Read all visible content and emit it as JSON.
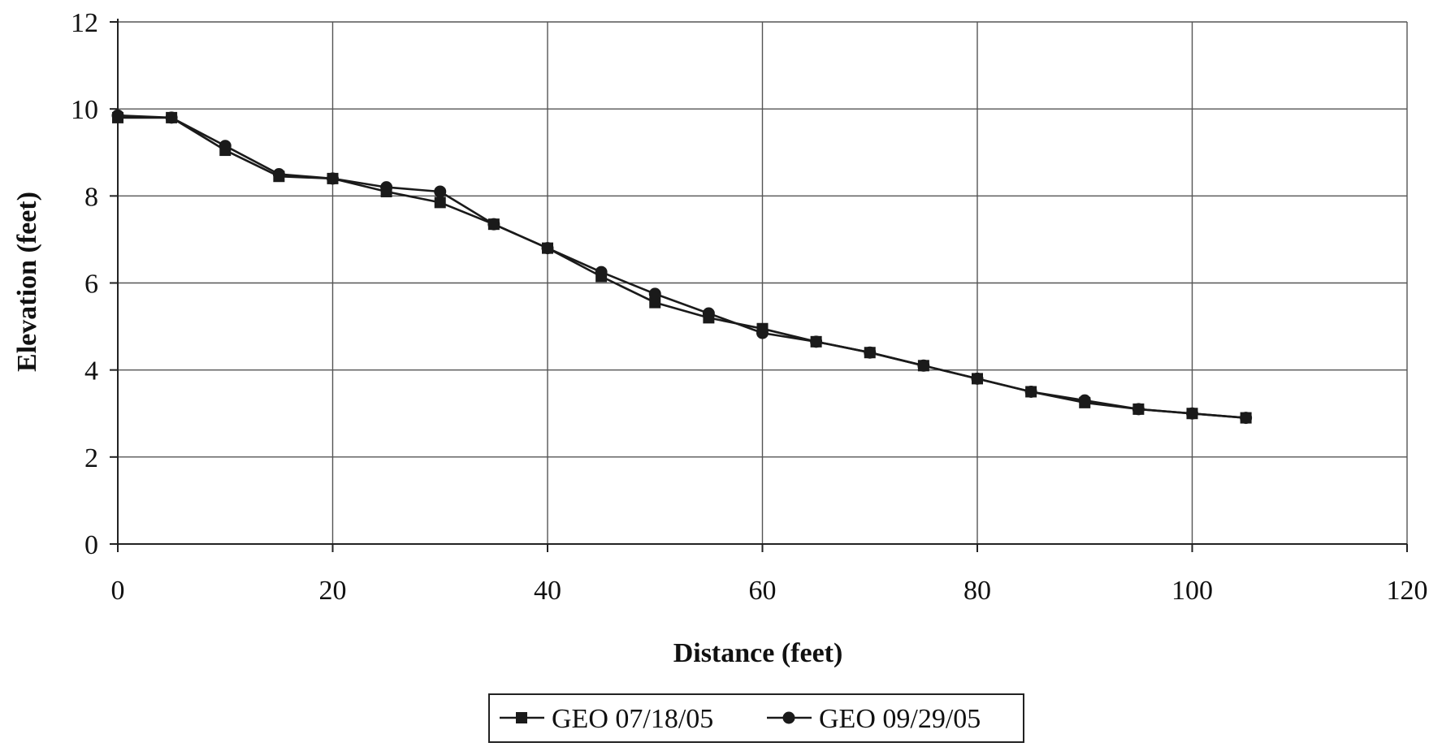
{
  "chart_data": {
    "type": "line",
    "title": "",
    "xlabel": "Distance (feet)",
    "ylabel": "Elevation (feet)",
    "xlim": [
      0,
      120
    ],
    "ylim": [
      0,
      12
    ],
    "x_ticks": [
      "0",
      "20",
      "40",
      "60",
      "80",
      "100",
      "120"
    ],
    "y_ticks": [
      "0",
      "2",
      "4",
      "6",
      "8",
      "10",
      "12"
    ],
    "grid": true,
    "legend_position": "bottom-center",
    "series": [
      {
        "name": "GEO 07/18/05",
        "marker": "square",
        "color": "#1a1a1a",
        "x": [
          0,
          5,
          10,
          15,
          20,
          25,
          30,
          35,
          40,
          45,
          50,
          55,
          60,
          65,
          70,
          75,
          80,
          85,
          90,
          95,
          100,
          105
        ],
        "y": [
          9.8,
          9.8,
          9.05,
          8.45,
          8.4,
          8.1,
          7.85,
          7.35,
          6.8,
          6.15,
          5.55,
          5.2,
          4.95,
          4.65,
          4.4,
          4.1,
          3.8,
          3.5,
          3.25,
          3.1,
          3.0,
          2.9
        ]
      },
      {
        "name": "GEO 09/29/05",
        "marker": "circle",
        "color": "#1a1a1a",
        "x": [
          0,
          5,
          10,
          15,
          20,
          25,
          30,
          35,
          40,
          45,
          50,
          55,
          60,
          65,
          70,
          75,
          80,
          85,
          90,
          95,
          100,
          105
        ],
        "y": [
          9.85,
          9.8,
          9.15,
          8.5,
          8.4,
          8.2,
          8.1,
          7.35,
          6.8,
          6.25,
          5.75,
          5.3,
          4.85,
          4.65,
          4.4,
          4.1,
          3.8,
          3.5,
          3.3,
          3.1,
          3.0,
          2.9
        ]
      }
    ]
  }
}
